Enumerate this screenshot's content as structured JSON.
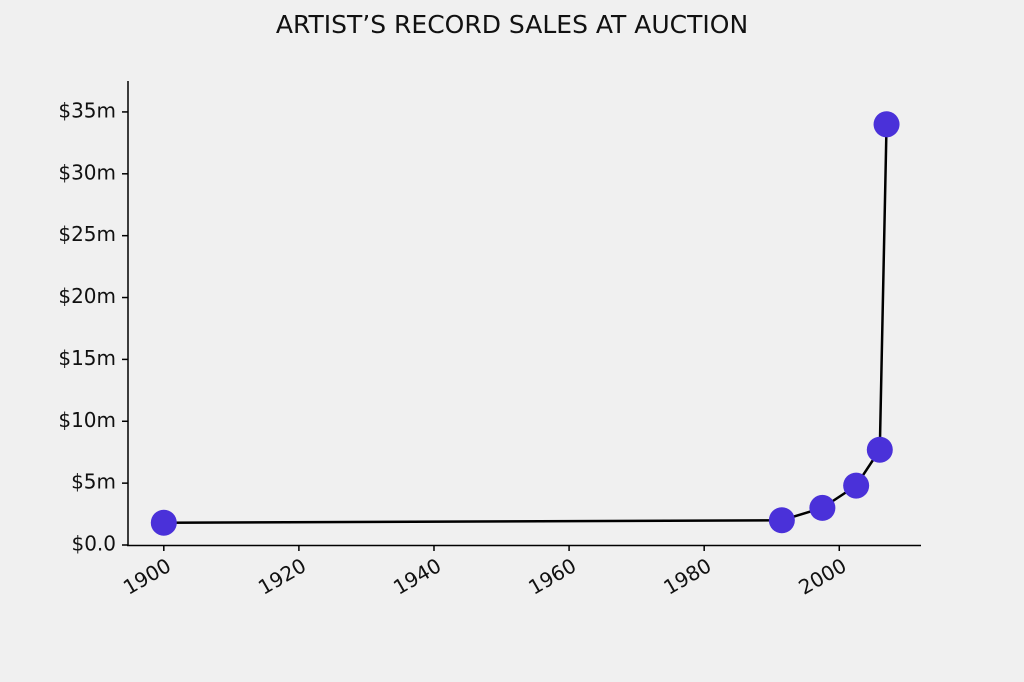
{
  "chart_data": {
    "type": "line",
    "title": "ARTIST’S RECORD SALES AT AUCTION",
    "x": [
      1900,
      1991.5,
      1997.5,
      2002.5,
      2006,
      2007
    ],
    "values": [
      1.8,
      2.0,
      3.0,
      4.8,
      7.7,
      34.0
    ],
    "color": "#4a31d9",
    "line_color": "#000000",
    "xlim": [
      1894.7,
      2012.1
    ],
    "xticks": [
      1900,
      1920,
      1940,
      1960,
      1980,
      2000
    ],
    "ylim": [
      0,
      37.5
    ],
    "yticks": [
      {
        "value": 0,
        "label": "$0.0"
      },
      {
        "value": 5,
        "label": "$5m"
      },
      {
        "value": 10,
        "label": "$10m"
      },
      {
        "value": 15,
        "label": "$15m"
      },
      {
        "value": 20,
        "label": "$20m"
      },
      {
        "value": 25,
        "label": "$25m"
      },
      {
        "value": 30,
        "label": "$30m"
      },
      {
        "value": 35,
        "label": "$35m"
      }
    ],
    "grid": false
  }
}
